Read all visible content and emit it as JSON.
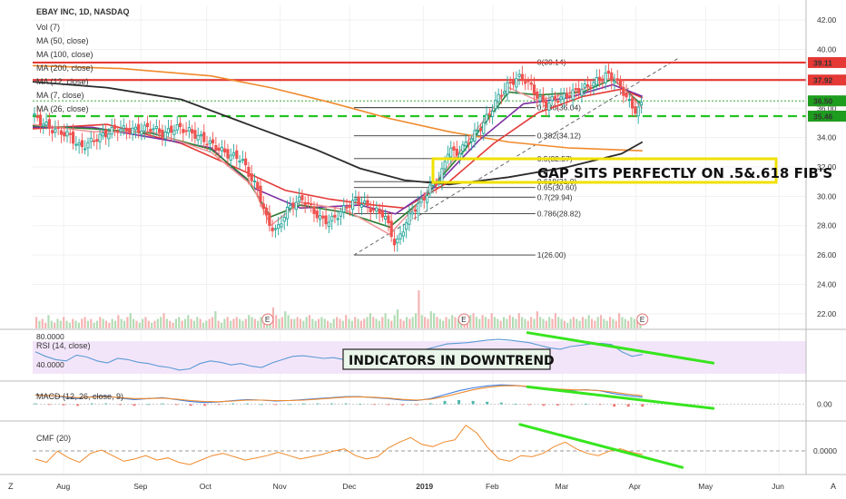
{
  "header": {
    "symbol_line": "EBAY INC, 1D, NASDAQ",
    "studies": [
      "Vol (7)",
      "MA (50, close)",
      "MA (100, close)",
      "MA (200, close)",
      "MA (12, close)",
      "MA (7, close)",
      "MA (26, close)"
    ]
  },
  "annotations": {
    "gap_note": "GAP SITS PERFECTLY ON .5&.618 FIB'S",
    "indicators_note": "INDICATORS IN DOWNTREND"
  },
  "panes": {
    "rsi_title": "RSI (14, close)",
    "macd_title": "MACD (12, 26, close, 9)",
    "cmf_title": "CMF (20)",
    "rsi_ticks": [
      "80.0000",
      "40.0000"
    ],
    "macd_ticks": [
      "0.00"
    ],
    "cmf_ticks": [
      "0.0000"
    ]
  },
  "earnings_marker": "E",
  "footer": {
    "left_btn": "Z",
    "right_btn": "A"
  },
  "chart_data": {
    "type": "candlestick",
    "y_ticks": [
      "42.00",
      "40.00",
      "38.00",
      "36.00",
      "34.00",
      "32.00",
      "30.00",
      "28.00",
      "26.00",
      "24.00",
      "22.00"
    ],
    "ylim": [
      21,
      43
    ],
    "x_ticks": [
      "Aug",
      "Sep",
      "Oct",
      "Nov",
      "Dec",
      "2019",
      "Feb",
      "Mar",
      "Apr",
      "May",
      "Jun"
    ],
    "price_tags": [
      {
        "text": "39.11",
        "color": "#e53935"
      },
      {
        "text": "37.92",
        "color": "#e53935"
      },
      {
        "text": "36.50",
        "color": "#1e9c1e"
      },
      {
        "text": "35.46",
        "color": "#1e9c1e"
      }
    ],
    "horizontal_levels": [
      {
        "value": 39.11,
        "color": "#e53935",
        "style": "solid"
      },
      {
        "value": 37.92,
        "color": "#e53935",
        "style": "solid"
      },
      {
        "value": 35.46,
        "color": "#22c322",
        "style": "dashed"
      }
    ],
    "fib_levels": [
      {
        "label": "0(39.14)",
        "value": 39.14
      },
      {
        "label": "0.236(36.04)",
        "value": 36.04
      },
      {
        "label": "0.382(34.12)",
        "value": 34.12
      },
      {
        "label": "0.5(32.57)",
        "value": 32.57
      },
      {
        "label": "0.618(31.0)",
        "value": 31.0
      },
      {
        "label": "0.65(30.60)",
        "value": 30.6
      },
      {
        "label": "0.7(29.94)",
        "value": 29.94
      },
      {
        "label": "0.786(28.82)",
        "value": 28.82
      },
      {
        "label": "1(26.00)",
        "value": 26.0
      }
    ],
    "price_path": [
      [
        0,
        35.5
      ],
      [
        6,
        34.6
      ],
      [
        12,
        34.2
      ],
      [
        16,
        33.3
      ],
      [
        22,
        34.0
      ],
      [
        28,
        34.6
      ],
      [
        34,
        34.5
      ],
      [
        40,
        34.7
      ],
      [
        44,
        34.2
      ],
      [
        48,
        34.7
      ],
      [
        52,
        34.5
      ],
      [
        58,
        33.8
      ],
      [
        62,
        33.3
      ],
      [
        66,
        32.8
      ],
      [
        70,
        32.6
      ],
      [
        73,
        31.4
      ],
      [
        76,
        30.3
      ],
      [
        79,
        28.2
      ],
      [
        82,
        27.6
      ],
      [
        85,
        28.9
      ],
      [
        88,
        29.6
      ],
      [
        91,
        29.8
      ],
      [
        94,
        29.1
      ],
      [
        97,
        28.4
      ],
      [
        100,
        28.3
      ],
      [
        103,
        28.8
      ],
      [
        106,
        29.4
      ],
      [
        109,
        29.7
      ],
      [
        112,
        29.4
      ],
      [
        115,
        29.0
      ],
      [
        118,
        28.8
      ],
      [
        120,
        27.8
      ],
      [
        122,
        26.6
      ],
      [
        125,
        28.0
      ],
      [
        128,
        29.1
      ],
      [
        131,
        29.7
      ],
      [
        134,
        30.7
      ],
      [
        137,
        31.2
      ],
      [
        140,
        33.4
      ],
      [
        142,
        32.8
      ],
      [
        145,
        33.4
      ],
      [
        148,
        34.1
      ],
      [
        151,
        34.8
      ],
      [
        154,
        35.8
      ],
      [
        157,
        36.9
      ],
      [
        160,
        37.6
      ],
      [
        163,
        38.1
      ],
      [
        166,
        37.9
      ],
      [
        169,
        37.0
      ],
      [
        172,
        36.2
      ],
      [
        175,
        36.6
      ],
      [
        178,
        36.7
      ],
      [
        181,
        37.0
      ],
      [
        184,
        37.3
      ],
      [
        187,
        37.5
      ],
      [
        190,
        37.9
      ],
      [
        193,
        38.3
      ],
      [
        196,
        37.9
      ],
      [
        199,
        37.0
      ],
      [
        201,
        36.2
      ],
      [
        203,
        35.8
      ],
      [
        205,
        36.3
      ]
    ],
    "ma_lines": [
      {
        "name": "MA (200, close)",
        "color": "#ef8a2c",
        "points": [
          [
            0,
            38.9
          ],
          [
            30,
            38.7
          ],
          [
            60,
            38.2
          ],
          [
            80,
            37.4
          ],
          [
            100,
            36.4
          ],
          [
            120,
            35.3
          ],
          [
            140,
            34.4
          ],
          [
            160,
            33.7
          ],
          [
            180,
            33.3
          ],
          [
            205,
            33.1
          ]
        ]
      },
      {
        "name": "MA (100, close)",
        "color": "#2b2b2b",
        "points": [
          [
            0,
            37.8
          ],
          [
            25,
            37.4
          ],
          [
            50,
            36.6
          ],
          [
            75,
            34.7
          ],
          [
            95,
            33.2
          ],
          [
            110,
            31.9
          ],
          [
            125,
            31.1
          ],
          [
            140,
            30.8
          ],
          [
            160,
            31.3
          ],
          [
            180,
            32.0
          ],
          [
            198,
            32.9
          ],
          [
            205,
            33.7
          ]
        ]
      },
      {
        "name": "MA (50, close)",
        "color": "#e53935",
        "points": [
          [
            0,
            34.6
          ],
          [
            25,
            34.9
          ],
          [
            50,
            33.6
          ],
          [
            70,
            31.8
          ],
          [
            85,
            30.4
          ],
          [
            100,
            29.8
          ],
          [
            115,
            29.4
          ],
          [
            125,
            29.2
          ],
          [
            140,
            31.0
          ],
          [
            155,
            33.6
          ],
          [
            170,
            35.7
          ],
          [
            185,
            36.8
          ],
          [
            198,
            37.3
          ],
          [
            205,
            36.7
          ]
        ]
      },
      {
        "name": "MA (26, close)",
        "color": "#7e2fa0",
        "points": [
          [
            0,
            34.7
          ],
          [
            20,
            34.7
          ],
          [
            40,
            34.0
          ],
          [
            60,
            33.3
          ],
          [
            75,
            30.5
          ],
          [
            90,
            29.2
          ],
          [
            110,
            29.4
          ],
          [
            122,
            28.8
          ],
          [
            135,
            30.6
          ],
          [
            150,
            33.8
          ],
          [
            165,
            36.3
          ],
          [
            180,
            36.7
          ],
          [
            195,
            37.6
          ],
          [
            205,
            36.8
          ]
        ]
      },
      {
        "name": "MA (12, close)",
        "color": "#2e7d32",
        "points": [
          [
            0,
            34.8
          ],
          [
            20,
            34.6
          ],
          [
            40,
            34.3
          ],
          [
            60,
            33.2
          ],
          [
            72,
            31.2
          ],
          [
            80,
            28.6
          ],
          [
            90,
            29.4
          ],
          [
            105,
            28.9
          ],
          [
            120,
            27.9
          ],
          [
            130,
            29.6
          ],
          [
            145,
            33.1
          ],
          [
            160,
            37.1
          ],
          [
            170,
            36.9
          ],
          [
            185,
            37.1
          ],
          [
            195,
            38.0
          ],
          [
            205,
            36.2
          ]
        ]
      },
      {
        "name": "MA (7, close)",
        "color": "#ef9a9a",
        "points": [
          [
            0,
            34.9
          ],
          [
            20,
            34.4
          ],
          [
            40,
            34.4
          ],
          [
            60,
            33.0
          ],
          [
            74,
            30.7
          ],
          [
            80,
            28.0
          ],
          [
            90,
            29.6
          ],
          [
            105,
            29.1
          ],
          [
            120,
            27.4
          ],
          [
            130,
            29.6
          ],
          [
            145,
            33.4
          ],
          [
            160,
            37.4
          ],
          [
            170,
            36.5
          ],
          [
            185,
            37.3
          ],
          [
            195,
            38.1
          ],
          [
            205,
            36.0
          ]
        ]
      }
    ],
    "volume": [
      6,
      4,
      5,
      3,
      7,
      4,
      3,
      5,
      4,
      6,
      4,
      3,
      5,
      4,
      3,
      5,
      6,
      4,
      5,
      3,
      4,
      6,
      5,
      4,
      3,
      5,
      4,
      7,
      5,
      4,
      6,
      8,
      5,
      4,
      3,
      5,
      6,
      4,
      3,
      4,
      5,
      6,
      8,
      5,
      4,
      3,
      5,
      6,
      4,
      5,
      7,
      5,
      4,
      6,
      5,
      3,
      4,
      5,
      6,
      9,
      4,
      3,
      5,
      6,
      4,
      5,
      6,
      5,
      4,
      5,
      7,
      6,
      5,
      4,
      6,
      5,
      4,
      6,
      11,
      7,
      5,
      6,
      9,
      7,
      5,
      5,
      6,
      5,
      4,
      6,
      7,
      5,
      4,
      5,
      6,
      5,
      4,
      3,
      5,
      6,
      5,
      4,
      7,
      5,
      4,
      6,
      5,
      4,
      5,
      6,
      8,
      6,
      5,
      4,
      6,
      8,
      5,
      4,
      7,
      10,
      5,
      4,
      6,
      5,
      6,
      8,
      20,
      7,
      6,
      5,
      9,
      8,
      6,
      5,
      4,
      6,
      5,
      7,
      6,
      5,
      4,
      6,
      5,
      7,
      8,
      6,
      5,
      7,
      6,
      5,
      8,
      6,
      5,
      4,
      6,
      5,
      7,
      6,
      5,
      8,
      6,
      5,
      4,
      6,
      5,
      9,
      6,
      5,
      4,
      6,
      5,
      8,
      6,
      5,
      4,
      3,
      5,
      6,
      5,
      4,
      6,
      5,
      7,
      5,
      4,
      6,
      7,
      5,
      4,
      6,
      5,
      4,
      8,
      6,
      5,
      4,
      6,
      5,
      4,
      3
    ],
    "rsi": [
      62,
      55,
      50,
      48,
      57,
      54,
      48,
      45,
      52,
      50,
      46,
      44,
      40,
      38,
      34,
      36,
      44,
      48,
      46,
      42,
      44,
      40,
      38,
      45,
      50,
      55,
      56,
      54,
      52,
      53,
      50,
      48,
      45,
      38,
      40,
      48,
      56,
      62,
      66,
      70,
      74,
      75,
      76,
      78,
      80,
      81,
      80,
      78,
      76,
      72,
      68,
      66,
      70,
      72,
      74,
      75,
      73,
      62,
      55,
      58
    ],
    "macd_line": [
      0.3,
      0.2,
      0.05,
      -0.1,
      0.1,
      0.15,
      -0.05,
      -0.2,
      -0.1,
      0.0,
      -0.2,
      -0.4,
      -0.5,
      -0.45,
      -0.3,
      -0.2,
      -0.25,
      -0.35,
      -0.3,
      -0.2,
      -0.1,
      0.0,
      0.1,
      0.1,
      0.0,
      -0.1,
      -0.25,
      -0.3,
      -0.1,
      0.3,
      0.7,
      1.0,
      1.2,
      1.3,
      1.25,
      1.1,
      0.9,
      0.8,
      0.75,
      0.8,
      0.7,
      0.4,
      0.2,
      0.05
    ],
    "macd_signal": [
      0.25,
      0.22,
      0.12,
      0.0,
      0.05,
      0.1,
      0.0,
      -0.1,
      -0.1,
      -0.05,
      -0.15,
      -0.3,
      -0.4,
      -0.42,
      -0.35,
      -0.25,
      -0.25,
      -0.3,
      -0.3,
      -0.25,
      -0.15,
      -0.05,
      0.05,
      0.08,
      0.03,
      -0.05,
      -0.18,
      -0.25,
      -0.15,
      0.1,
      0.45,
      0.8,
      1.05,
      1.2,
      1.22,
      1.15,
      1.0,
      0.88,
      0.8,
      0.78,
      0.72,
      0.55,
      0.35,
      0.2
    ],
    "cmf": [
      -0.05,
      -0.08,
      0.02,
      -0.04,
      -0.08,
      0.0,
      0.03,
      -0.02,
      -0.07,
      -0.05,
      -0.02,
      -0.06,
      -0.04,
      -0.08,
      -0.1,
      -0.06,
      -0.02,
      0.0,
      -0.03,
      -0.06,
      -0.04,
      -0.02,
      0.01,
      -0.02,
      -0.05,
      -0.03,
      -0.01,
      0.02,
      0.04,
      -0.02,
      -0.05,
      -0.03,
      0.05,
      0.1,
      0.14,
      0.08,
      0.06,
      0.1,
      0.12,
      0.25,
      0.18,
      0.05,
      -0.05,
      -0.07,
      -0.02,
      -0.03,
      0.0,
      0.06,
      0.1,
      0.04,
      0.0,
      -0.02,
      0.02,
      0.04,
      0.01,
      -0.01
    ],
    "trendlines": [
      {
        "pane": "rsi",
        "from": [
          0.64,
          0.05
        ],
        "to": [
          0.88,
          0.67
        ]
      },
      {
        "pane": "macd",
        "from": [
          0.64,
          0.13
        ],
        "to": [
          0.88,
          0.71
        ]
      },
      {
        "pane": "cmf",
        "from": [
          0.63,
          0.05
        ],
        "to": [
          0.84,
          0.88
        ]
      }
    ]
  },
  "colors": {
    "up": "#26a69a",
    "up_fill": "#ffffff",
    "down": "#ef5350",
    "vol_up": "#a5d6a7",
    "vol_down": "#f4a6a6",
    "trend_green": "#37e51f",
    "rsi_band": "#f3e5f9",
    "rsi_line": "#5b9bd5",
    "macd_line": "#3f7fe0",
    "signal_line": "#ef8a2c",
    "cmf_line": "#ef8a2c",
    "highlight_box": "#f0e000"
  }
}
